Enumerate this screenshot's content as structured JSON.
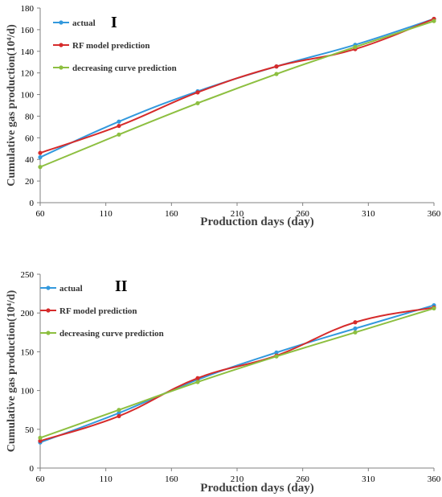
{
  "chart_data": [
    {
      "type": "line",
      "panel_label": "I",
      "xlabel": "Production days (day)",
      "ylabel": "Cumulative gas production(10⁴/d)",
      "xlim": [
        60,
        360
      ],
      "ylim": [
        0,
        180
      ],
      "xticks": [
        60,
        110,
        160,
        210,
        260,
        310,
        360
      ],
      "yticks": [
        0,
        20,
        40,
        60,
        80,
        100,
        120,
        140,
        160,
        180
      ],
      "grid": false,
      "legend_position": "top-left",
      "series": [
        {
          "name": "actual",
          "color": "#3399dd",
          "x": [
            60,
            120,
            180,
            240,
            300,
            360
          ],
          "y": [
            42,
            75,
            103,
            126,
            146,
            170
          ]
        },
        {
          "name": "RF model prediction",
          "color": "#d62b2b",
          "x": [
            60,
            120,
            180,
            240,
            300,
            360
          ],
          "y": [
            46,
            71,
            102,
            126,
            142,
            170
          ]
        },
        {
          "name": "decreasing curve prediction",
          "color": "#8dbf40",
          "x": [
            60,
            120,
            180,
            240,
            300,
            360
          ],
          "y": [
            33,
            63,
            92,
            119,
            144,
            168
          ]
        }
      ]
    },
    {
      "type": "line",
      "panel_label": "II",
      "xlabel": "Production days (day)",
      "ylabel": "Cumulative gas production(10⁴/d)",
      "xlim": [
        60,
        360
      ],
      "ylim": [
        0,
        250
      ],
      "xticks": [
        60,
        110,
        160,
        210,
        260,
        310,
        360
      ],
      "yticks": [
        0,
        50,
        100,
        150,
        200,
        250
      ],
      "grid": false,
      "legend_position": "top-left",
      "series": [
        {
          "name": "actual",
          "color": "#3399dd",
          "x": [
            60,
            120,
            180,
            240,
            300,
            360
          ],
          "y": [
            33,
            71,
            114,
            149,
            180,
            210
          ]
        },
        {
          "name": "RF model prediction",
          "color": "#d62b2b",
          "x": [
            60,
            120,
            180,
            240,
            300,
            360
          ],
          "y": [
            35,
            67,
            116,
            145,
            188,
            207
          ]
        },
        {
          "name": "decreasing curve prediction",
          "color": "#8dbf40",
          "x": [
            60,
            120,
            180,
            240,
            300,
            360
          ],
          "y": [
            39,
            75,
            111,
            144,
            175,
            206
          ]
        }
      ]
    }
  ]
}
